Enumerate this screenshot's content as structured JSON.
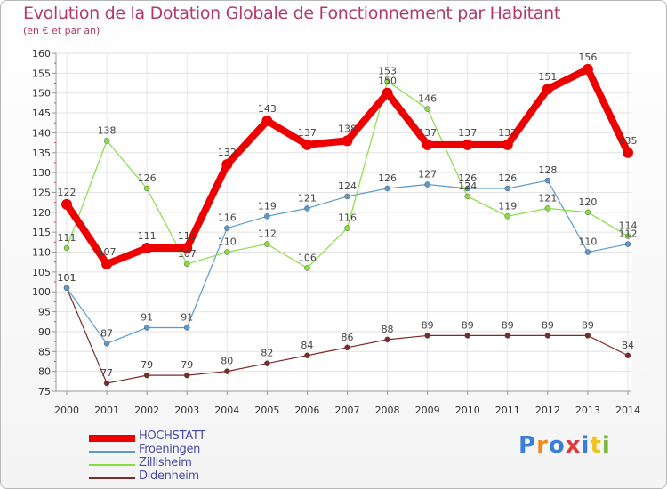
{
  "title": "Evolution de la Dotation Globale de Fonctionnement par Habitant",
  "subtitle": "(en € et par an)",
  "logo": "Proxiti",
  "chart_data": {
    "type": "line",
    "title": "Evolution de la Dotation Globale de Fonctionnement par Habitant",
    "subtitle": "(en € et par an)",
    "x": [
      "2000",
      "2001",
      "2002",
      "2003",
      "2004",
      "2005",
      "2006",
      "2007",
      "2008",
      "2009",
      "2010",
      "2011",
      "2012",
      "2013",
      "2014"
    ],
    "ylim": [
      75,
      160
    ],
    "yticks": [
      75,
      80,
      85,
      90,
      95,
      100,
      105,
      110,
      115,
      120,
      125,
      130,
      135,
      140,
      145,
      150,
      155,
      160
    ],
    "grid": true,
    "legend": "bottom-left",
    "series": [
      {
        "name": "HOCHSTATT",
        "color": "#ee0000",
        "values": [
          122,
          107,
          111,
          111,
          132,
          143,
          137,
          138,
          150,
          137,
          137,
          137,
          151,
          156,
          135
        ]
      },
      {
        "name": "Froeningen",
        "color": "#5a9acd",
        "values": [
          101,
          87,
          91,
          91,
          116,
          119,
          121,
          124,
          126,
          127,
          126,
          126,
          128,
          110,
          112
        ]
      },
      {
        "name": "Zillisheim",
        "color": "#88dd44",
        "values": [
          111,
          138,
          126,
          107,
          110,
          112,
          106,
          116,
          153,
          146,
          124,
          119,
          121,
          120,
          114
        ]
      },
      {
        "name": "Didenheim",
        "color": "#7a2a2a",
        "values": [
          101,
          77,
          79,
          79,
          80,
          82,
          84,
          86,
          88,
          89,
          89,
          89,
          89,
          89,
          84
        ]
      }
    ]
  }
}
